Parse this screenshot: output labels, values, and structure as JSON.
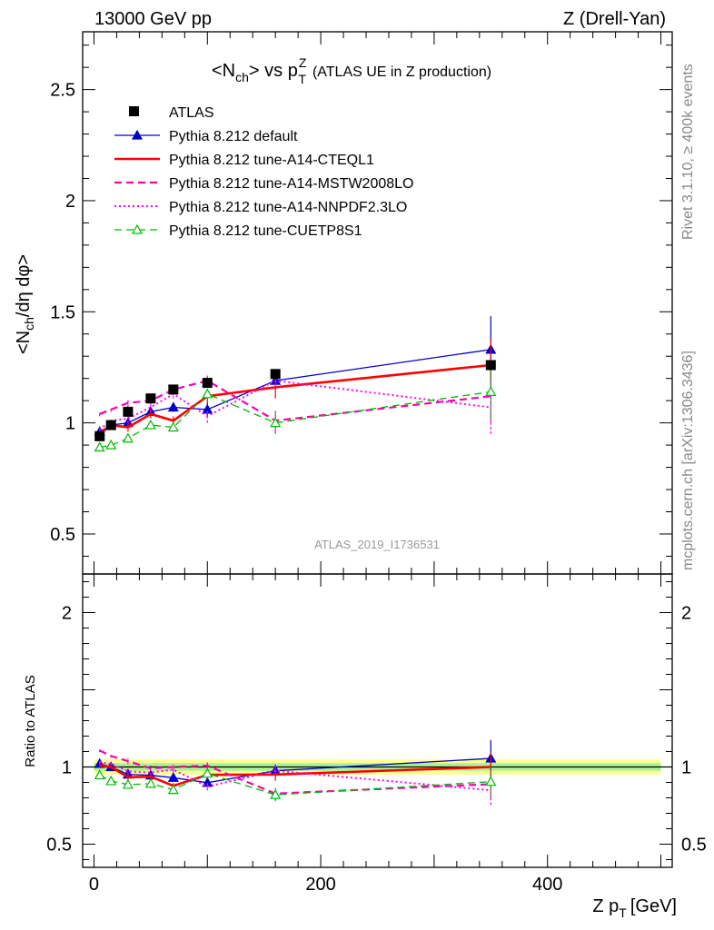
{
  "header": {
    "left": "13000 GeV pp",
    "right": "Z (Drell-Yan)"
  },
  "side_labels": {
    "rivet": "Rivet 3.1.10, ≥ 400k events",
    "mcplots": "mcplots.cern.ch [arXiv:1306.3436]"
  },
  "watermark": "ATLAS_2019_I1736531",
  "chart_data": {
    "type": "line",
    "title": {
      "main": "<N",
      "main_sub": "ch",
      "main_end": "> vs p",
      "pt_sup": "Z",
      "pt_sub": "T",
      "extra": "(ATLAS UE in Z production)"
    },
    "xlabel": {
      "text": "Z p",
      "sub": "T",
      "unit": "[GeV]"
    },
    "ylabel": {
      "pre": "<N",
      "sub": "ch",
      "post": "/dη dφ>"
    },
    "ratio_ylabel": "Ratio to ATLAS",
    "xlim": [
      -10,
      510
    ],
    "ylim": [
      0.32,
      2.76
    ],
    "ratio_ylim": [
      0.35,
      2.25
    ],
    "x_ticks": [
      0,
      200,
      400
    ],
    "y_ticks": [
      0.5,
      1,
      1.5,
      2,
      2.5
    ],
    "y_tick_labels": [
      "0.5",
      "1",
      "1.5",
      "2",
      "2.5"
    ],
    "ratio_y_ticks": [
      0.5,
      1,
      2
    ],
    "ratio_y_tick_labels": [
      "0.5",
      "1",
      "2"
    ],
    "x": [
      5,
      15,
      30,
      50,
      70,
      100,
      160,
      350
    ],
    "data": {
      "name": "ATLAS",
      "values": [
        0.94,
        0.99,
        1.05,
        1.11,
        1.15,
        1.18,
        1.22,
        1.26
      ]
    },
    "series": [
      {
        "name": "Pythia 8.212 default",
        "color": "#0000cc",
        "dash": "solid",
        "width": 1.3,
        "marker": "triangle-filled",
        "values": [
          0.96,
          0.99,
          1.0,
          1.05,
          1.07,
          1.06,
          1.19,
          1.33
        ],
        "errors": [
          0.01,
          0.01,
          0.02,
          0.02,
          0.02,
          0.03,
          0.05,
          0.15
        ]
      },
      {
        "name": "Pythia 8.212 tune-A14-CTEQL1",
        "color": "#ff0000",
        "dash": "solid",
        "width": 2.6,
        "marker": "none",
        "values": [
          0.95,
          0.99,
          0.98,
          1.04,
          1.01,
          1.12,
          1.16,
          1.26
        ],
        "errors": [
          0.01,
          0.01,
          0.02,
          0.02,
          0.02,
          0.03,
          0.05,
          0.12
        ]
      },
      {
        "name": "Pythia 8.212 tune-A14-MSTW2008LO",
        "color": "#ff00aa",
        "dash": "dashed",
        "width": 2.2,
        "marker": "none",
        "values": [
          1.04,
          1.06,
          1.09,
          1.1,
          1.15,
          1.19,
          1.01,
          1.12
        ],
        "errors": [
          0.01,
          0.01,
          0.02,
          0.02,
          0.02,
          0.03,
          0.05,
          0.12
        ]
      },
      {
        "name": "Pythia 8.212 tune-A14-NNPDF2.3LO",
        "color": "#ff00ff",
        "dash": "dotted",
        "width": 2.0,
        "marker": "none",
        "values": [
          0.97,
          1.01,
          1.02,
          1.07,
          1.13,
          1.03,
          1.19,
          1.07
        ],
        "errors": [
          0.01,
          0.01,
          0.02,
          0.02,
          0.02,
          0.03,
          0.05,
          0.12
        ]
      },
      {
        "name": "Pythia 8.212 tune-CUETP8S1",
        "color": "#00bb00",
        "dash": "dashed",
        "width": 1.3,
        "marker": "triangle-open",
        "values": [
          0.89,
          0.9,
          0.93,
          0.99,
          0.98,
          1.13,
          1.0,
          1.14
        ],
        "errors": [
          0.01,
          0.01,
          0.02,
          0.02,
          0.02,
          0.03,
          0.05,
          0.12
        ]
      }
    ],
    "legend_position": "top-left"
  }
}
